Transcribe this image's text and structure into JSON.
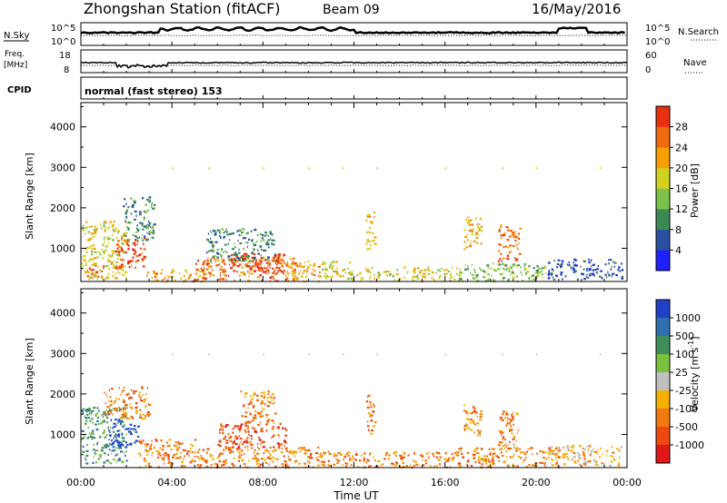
{
  "header": {
    "title": "Zhongshan Station (fitACF)",
    "beam": "Beam 09",
    "date": "16/May/2016"
  },
  "labels": {
    "nsky": "N.Sky",
    "nsearch": "N.Search",
    "freq_line1": "Freq.",
    "freq_line2": "[MHz]",
    "nave": "Nave",
    "cpid": "CPID",
    "cpid_value": "normal (fast stereo) 153",
    "ylabel": "Slant Range [km]",
    "xlabel": "Time UT"
  },
  "top_panels": {
    "noise_left_ticks": [
      "10^5",
      "10^0"
    ],
    "noise_right_ticks": [
      "10^5",
      "10^0"
    ],
    "freq_left_ticks": [
      "18",
      "8"
    ],
    "nave_right_ticks": [
      "60",
      "0"
    ]
  },
  "axes": {
    "y_ticks": [
      1000,
      2000,
      3000,
      4000
    ],
    "y_range": [
      180,
      4600
    ],
    "x_ticks": [
      "00:00",
      "04:00",
      "08:00",
      "12:00",
      "16:00",
      "20:00",
      "00:00"
    ],
    "x_range_hours": [
      0,
      24
    ]
  },
  "power_scale": {
    "title": "Power [dB]",
    "ticks": [
      "4",
      "8",
      "12",
      "16",
      "20",
      "24",
      "28"
    ],
    "colors": [
      "#1f1fff",
      "#2a4fa0",
      "#3a8a55",
      "#7dc24a",
      "#d4d020",
      "#f5a000",
      "#f06a10",
      "#e83010"
    ]
  },
  "velocity_scale": {
    "title": "Velocity [m s",
    "title_sup": "-1",
    "title_end": "]",
    "ticks": [
      "1000",
      "500",
      "100",
      "25",
      "-25",
      "-100",
      "-500",
      "-1000"
    ],
    "colors": [
      "#2040c8",
      "#2f6fb0",
      "#3f8f5a",
      "#79c23e",
      "#c0c0c0",
      "#f5b000",
      "#f07a10",
      "#ee4a10",
      "#e01818"
    ]
  },
  "chart_data": {
    "type": "heatmap",
    "x_unit": "hours UT",
    "y_unit": "km",
    "power_blobs": [
      {
        "t0": 0.0,
        "t1": 2.0,
        "r0": 250,
        "r1": 1700,
        "lvl": 4
      },
      {
        "t0": 1.5,
        "t1": 2.8,
        "r0": 500,
        "r1": 1300,
        "lvl": 7
      },
      {
        "t0": 0.1,
        "t1": 1.0,
        "r0": 300,
        "r1": 600,
        "lvl": 6
      },
      {
        "t0": 1.8,
        "t1": 3.2,
        "r0": 1200,
        "r1": 2300,
        "lvl": 2
      },
      {
        "t0": 2.8,
        "t1": 5.5,
        "r0": 200,
        "r1": 500,
        "lvl": 5
      },
      {
        "t0": 5.0,
        "t1": 9.5,
        "r0": 200,
        "r1": 800,
        "lvl": 6
      },
      {
        "t0": 6.5,
        "t1": 9.0,
        "r0": 400,
        "r1": 900,
        "lvl": 7
      },
      {
        "t0": 9.0,
        "t1": 10.5,
        "r0": 200,
        "r1": 700,
        "lvl": 5
      },
      {
        "t0": 5.5,
        "t1": 8.5,
        "r0": 700,
        "r1": 1500,
        "lvl": 2
      },
      {
        "t0": 10.5,
        "t1": 11.8,
        "r0": 250,
        "r1": 700,
        "lvl": 4
      },
      {
        "t0": 12.5,
        "t1": 12.9,
        "r0": 1000,
        "r1": 2000,
        "lvl": 5
      },
      {
        "t0": 11.8,
        "t1": 16.5,
        "r0": 200,
        "r1": 550,
        "lvl": 4
      },
      {
        "t0": 16.8,
        "t1": 17.6,
        "r0": 1000,
        "r1": 1800,
        "lvl": 5
      },
      {
        "t0": 18.3,
        "t1": 19.3,
        "r0": 700,
        "r1": 1600,
        "lvl": 6
      },
      {
        "t0": 16.5,
        "t1": 20.5,
        "r0": 200,
        "r1": 650,
        "lvl": 3
      },
      {
        "t0": 20.5,
        "t1": 23.8,
        "r0": 250,
        "r1": 750,
        "lvl": 1
      }
    ],
    "velocity_blobs": [
      {
        "t0": 0.0,
        "t1": 2.0,
        "r0": 300,
        "r1": 1700,
        "lvl": 2
      },
      {
        "t0": 1.2,
        "t1": 2.5,
        "r0": 700,
        "r1": 1400,
        "lvl": 0
      },
      {
        "t0": 1.0,
        "t1": 3.0,
        "r0": 1400,
        "r1": 2200,
        "lvl": 6
      },
      {
        "t0": 2.5,
        "t1": 5.0,
        "r0": 200,
        "r1": 900,
        "lvl": 6
      },
      {
        "t0": 5.0,
        "t1": 10.5,
        "r0": 200,
        "r1": 700,
        "lvl": 6
      },
      {
        "t0": 6.0,
        "t1": 9.0,
        "r0": 700,
        "r1": 1300,
        "lvl": 7
      },
      {
        "t0": 7.0,
        "t1": 8.5,
        "r0": 1300,
        "r1": 2100,
        "lvl": 6
      },
      {
        "t0": 10.5,
        "t1": 16.5,
        "r0": 200,
        "r1": 600,
        "lvl": 6
      },
      {
        "t0": 12.5,
        "t1": 12.9,
        "r0": 1000,
        "r1": 2000,
        "lvl": 6
      },
      {
        "t0": 16.8,
        "t1": 17.6,
        "r0": 1000,
        "r1": 1800,
        "lvl": 6
      },
      {
        "t0": 18.3,
        "t1": 19.3,
        "r0": 700,
        "r1": 1600,
        "lvl": 6
      },
      {
        "t0": 16.5,
        "t1": 21.0,
        "r0": 200,
        "r1": 700,
        "lvl": 6
      },
      {
        "t0": 20.5,
        "t1": 23.8,
        "r0": 250,
        "r1": 750,
        "lvl": 5
      }
    ]
  }
}
